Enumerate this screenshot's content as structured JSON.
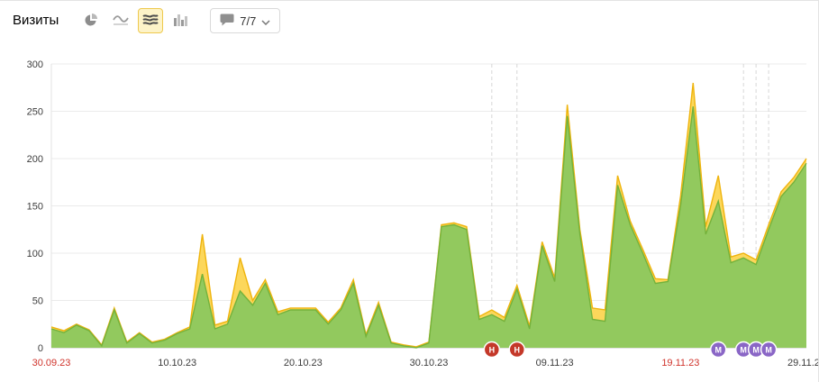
{
  "toolbar": {
    "title": "Визиты",
    "chart_type_buttons": [
      {
        "id": "pie",
        "icon": "pie-chart-icon",
        "selected": false
      },
      {
        "id": "line",
        "icon": "line-chart-icon",
        "selected": false
      },
      {
        "id": "stacked-area",
        "icon": "stacked-area-chart-icon",
        "selected": true
      },
      {
        "id": "columns",
        "icon": "column-chart-icon",
        "selected": false
      }
    ],
    "comments": {
      "icon": "comment-bubble-icon",
      "count_label": "7/7",
      "chevron": "chevron-down-icon"
    },
    "selected_highlight_color": "#eec94d"
  },
  "chart_data": {
    "type": "area",
    "title": "Визиты",
    "stacked_overlay": true,
    "grid": true,
    "ylim": [
      0,
      300
    ],
    "yticks": [
      0,
      50,
      100,
      150,
      200,
      250,
      300
    ],
    "x_range_days": [
      0,
      60
    ],
    "xticks": [
      {
        "day": 0,
        "label": "30.09.23",
        "red": true
      },
      {
        "day": 10,
        "label": "10.10.23",
        "red": false
      },
      {
        "day": 20,
        "label": "20.10.23",
        "red": false
      },
      {
        "day": 30,
        "label": "30.10.23",
        "red": false
      },
      {
        "day": 40,
        "label": "09.11.23",
        "red": false
      },
      {
        "day": 50,
        "label": "19.11.23",
        "red": true
      },
      {
        "day": 60,
        "label": "29.11.23",
        "red": false
      }
    ],
    "series": [
      {
        "name": "yellow-total",
        "fill": "#fcd75b",
        "stroke": "#efb40d",
        "values": [
          22,
          18,
          25,
          19,
          3,
          42,
          6,
          16,
          6,
          9,
          16,
          22,
          120,
          24,
          28,
          95,
          50,
          72,
          38,
          42,
          42,
          42,
          27,
          42,
          72,
          14,
          48,
          6,
          3,
          1,
          6,
          130,
          132,
          128,
          33,
          40,
          32,
          66,
          23,
          112,
          74,
          257,
          125,
          42,
          40,
          182,
          134,
          104,
          73,
          72,
          160,
          280,
          128,
          182,
          96,
          100,
          93,
          130,
          165,
          180,
          200
        ]
      },
      {
        "name": "green-segment",
        "fill": "#92c95e",
        "stroke": "#74b23b",
        "values": [
          20,
          16,
          24,
          18,
          2,
          40,
          5,
          15,
          5,
          8,
          15,
          20,
          78,
          20,
          25,
          60,
          45,
          68,
          35,
          40,
          40,
          40,
          25,
          40,
          68,
          12,
          45,
          5,
          2,
          0,
          5,
          128,
          130,
          125,
          30,
          35,
          28,
          62,
          20,
          108,
          70,
          245,
          120,
          30,
          28,
          172,
          130,
          100,
          68,
          70,
          150,
          255,
          120,
          155,
          90,
          95,
          88,
          125,
          160,
          175,
          195
        ]
      }
    ],
    "markers": [
      {
        "day": 35,
        "label": "Н",
        "color": "#c43829"
      },
      {
        "day": 37,
        "label": "Н",
        "color": "#c43829"
      },
      {
        "day": 53,
        "label": "М",
        "color": "#8a66c6"
      },
      {
        "day": 55,
        "label": "М",
        "color": "#8a66c6"
      },
      {
        "day": 56,
        "label": "М",
        "color": "#8a66c6"
      },
      {
        "day": 57,
        "label": "М",
        "color": "#8a66c6"
      }
    ],
    "dashed_days": [
      35,
      37,
      55,
      56,
      57
    ],
    "colors": {
      "grid": "#ebebeb",
      "axis": "#c9c9c9",
      "dashed": "#d7d7d7",
      "red_tick": "#d0342c",
      "tick": "#3c3c3c"
    }
  }
}
